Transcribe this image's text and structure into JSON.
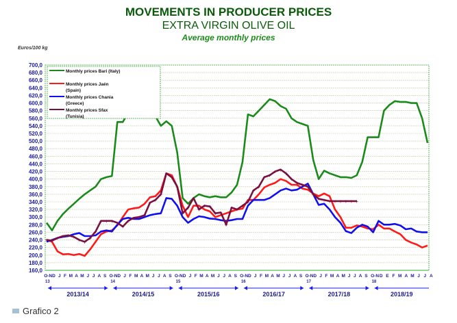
{
  "chart_data": {
    "type": "line",
    "title": "MOVEMENTS IN PRODUCER PRICES",
    "subtitle": "EXTRA VIRGIN OLIVE OIL",
    "subtitle2": "Average monthly prices",
    "ylabel": "Euros/100 kg",
    "ylim": [
      160,
      700
    ],
    "ystep": 20,
    "grid": true,
    "legend_position": "top-left",
    "month_labels": [
      [
        "O-N",
        "D",
        "J",
        "F",
        "M",
        "A",
        "M",
        "J",
        "J",
        "A",
        "S"
      ],
      [
        "O-N",
        "D",
        "J",
        "F",
        "M",
        "A",
        "M",
        "J",
        "J",
        "A",
        "S"
      ],
      [
        "O-N",
        "D",
        "J",
        "F",
        "M",
        "A",
        "M",
        "J",
        "J",
        "A",
        "S"
      ],
      [
        "O-N",
        "D",
        "J",
        "F",
        "M",
        "A",
        "M",
        "J",
        "J",
        "A",
        "S"
      ],
      [
        "O-N",
        "D",
        "J",
        "F",
        "M",
        "A",
        "M",
        "J",
        "J",
        "A",
        "S"
      ],
      [
        "O-N",
        "D",
        "E",
        "F",
        "M",
        "A",
        "M",
        "J",
        "J",
        "A"
      ]
    ],
    "year_marks": [
      "13",
      "14",
      "15",
      "16",
      "17",
      "18"
    ],
    "seasons": [
      "2013/14",
      "2014/15",
      "2015/16",
      "2016/17",
      "2017/18",
      "2018/19"
    ],
    "x_start": "Oct 2013",
    "x_end": "Aug 2019",
    "series": [
      {
        "name": "Monthly prices Bari (Italy)",
        "color": "#1a8a1a",
        "values": [
          285,
          265,
          290,
          308,
          322,
          335,
          348,
          360,
          370,
          380,
          400,
          405,
          408,
          550,
          550,
          575,
          600,
          600,
          595,
          588,
          565,
          540,
          552,
          540,
          470,
          350,
          335,
          350,
          360,
          355,
          352,
          355,
          352,
          352,
          365,
          385,
          445,
          570,
          565,
          580,
          595,
          610,
          605,
          592,
          585,
          560,
          550,
          545,
          540,
          450,
          400,
          422,
          415,
          410,
          405,
          405,
          403,
          410,
          445,
          510,
          510,
          510,
          580,
          595,
          605,
          603,
          603,
          600,
          600,
          560,
          495
        ]
      },
      {
        "name": "Monthly prices Jaén (Spain)",
        "color": "#ff1a1a",
        "values": [
          240,
          235,
          210,
          202,
          203,
          200,
          203,
          198,
          215,
          235,
          255,
          262,
          265,
          278,
          300,
          320,
          323,
          325,
          335,
          352,
          355,
          370,
          415,
          410,
          380,
          330,
          300,
          330,
          330,
          320,
          315,
          300,
          305,
          310,
          315,
          320,
          322,
          345,
          345,
          360,
          378,
          385,
          390,
          400,
          395,
          385,
          385,
          375,
          372,
          362,
          355,
          362,
          355,
          320,
          300,
          272,
          272,
          278,
          275,
          270,
          268,
          280,
          270,
          270,
          262,
          255,
          240,
          233,
          228,
          220,
          225
        ]
      },
      {
        "name": "Monthly prices Chania (Greece)",
        "color": "#1010ee",
        "values": [
          235,
          240,
          245,
          248,
          250,
          255,
          258,
          250,
          250,
          252,
          262,
          265,
          262,
          280,
          295,
          298,
          295,
          295,
          300,
          305,
          308,
          310,
          350,
          348,
          330,
          300,
          285,
          295,
          302,
          300,
          296,
          295,
          292,
          290,
          292,
          295,
          295,
          330,
          345,
          345,
          345,
          350,
          360,
          370,
          375,
          370,
          372,
          380,
          388,
          360,
          332,
          335,
          320,
          300,
          285,
          263,
          258,
          272,
          280,
          275,
          260,
          290,
          280,
          280,
          282,
          278,
          268,
          270,
          262,
          260,
          260
        ]
      },
      {
        "name": "Monthly prices Sfax (Tunisia)",
        "color": "#7a1040",
        "values": [
          240,
          238,
          245,
          250,
          252,
          248,
          240,
          235,
          245,
          262,
          290,
          290,
          290,
          285,
          275,
          290,
          298,
          300,
          305,
          338,
          345,
          360,
          415,
          405,
          380,
          310,
          325,
          350,
          320,
          330,
          328,
          310,
          312,
          280,
          325,
          320,
          330,
          340,
          370,
          380,
          405,
          410,
          420,
          425,
          415,
          400,
          390,
          385,
          380,
          360,
          348,
          345,
          342,
          342,
          342,
          342,
          342,
          342
        ]
      }
    ]
  },
  "caption": "Grafico 2"
}
